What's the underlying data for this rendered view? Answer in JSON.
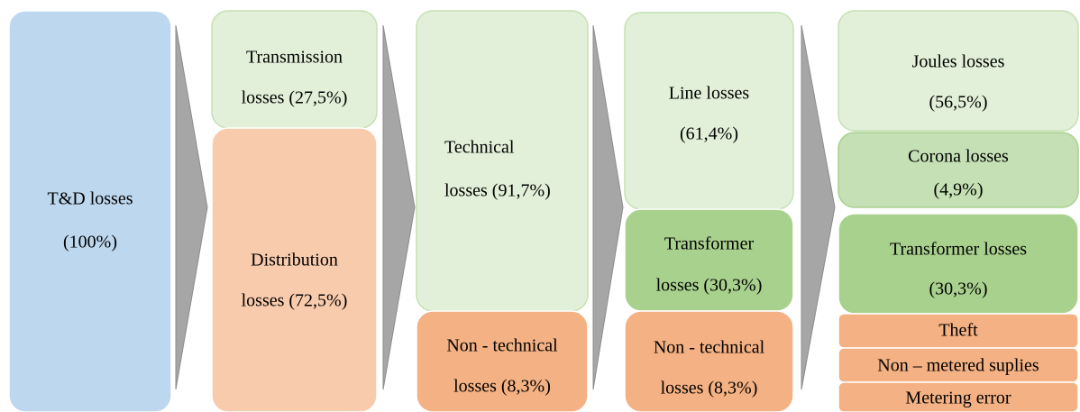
{
  "columns": [
    {
      "boxes": [
        {
          "lines": [
            "T&D losses",
            "(100%)"
          ]
        }
      ]
    },
    {
      "boxes": [
        {
          "lines": [
            "Transmission",
            "losses (27,5%)"
          ]
        },
        {
          "lines": [
            "Distribution",
            "losses (72,5%)"
          ]
        }
      ]
    },
    {
      "boxes": [
        {
          "lines": [
            "Technical",
            "losses (91,7%)"
          ]
        },
        {
          "lines": [
            "Non - technical",
            "losses (8,3%)"
          ]
        }
      ]
    },
    {
      "boxes": [
        {
          "lines": [
            "Line losses",
            "(61,4%)"
          ]
        },
        {
          "lines": [
            "Transformer",
            "losses (30,3%)"
          ]
        },
        {
          "lines": [
            "Non - technical",
            "losses (8,3%)"
          ]
        }
      ]
    },
    {
      "boxes": [
        {
          "lines": [
            "Joules losses",
            "(56,5%)"
          ]
        },
        {
          "lines": [
            "Corona losses",
            "(4,9%)"
          ]
        },
        {
          "lines": [
            "Transformer losses",
            "(30,3%)"
          ]
        },
        {
          "lines": [
            "Theft"
          ]
        },
        {
          "lines": [
            "Non – metered suplies"
          ]
        },
        {
          "lines": [
            "Metering error"
          ]
        }
      ]
    }
  ]
}
